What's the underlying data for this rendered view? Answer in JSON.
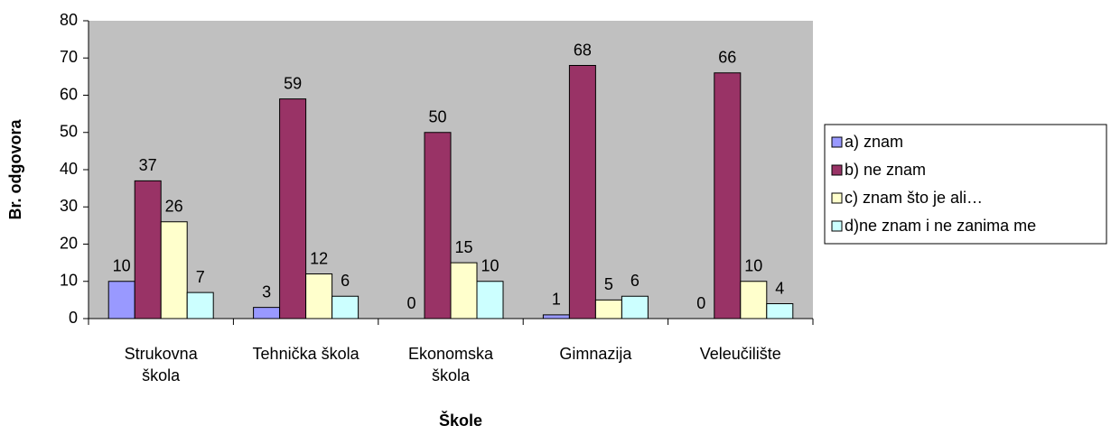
{
  "chart_data": {
    "type": "bar",
    "x_label": "Škole",
    "y_label": "Br. odgovora",
    "categories": [
      "Strukovna škola",
      "Tehnička škola",
      "Ekonomska škola",
      "Gimnazija",
      "Veleučilište"
    ],
    "series": [
      {
        "name": "a) znam",
        "color": "#9999ff",
        "values": [
          10,
          3,
          0,
          1,
          0
        ]
      },
      {
        "name": "b) ne znam",
        "color": "#993366",
        "values": [
          37,
          59,
          50,
          68,
          66
        ]
      },
      {
        "name": "c) znam što je ali…",
        "color": "#ffffcc",
        "values": [
          26,
          12,
          15,
          5,
          10
        ]
      },
      {
        "name": "d)ne znam i ne zanima me",
        "color": "#ccffff",
        "values": [
          7,
          6,
          10,
          6,
          4
        ]
      }
    ],
    "ylim": [
      0,
      80
    ],
    "yticks": [
      0,
      10,
      20,
      30,
      40,
      50,
      60,
      70,
      80
    ],
    "grid": false,
    "legend": "right",
    "plot_background": "#c0c0c0"
  }
}
